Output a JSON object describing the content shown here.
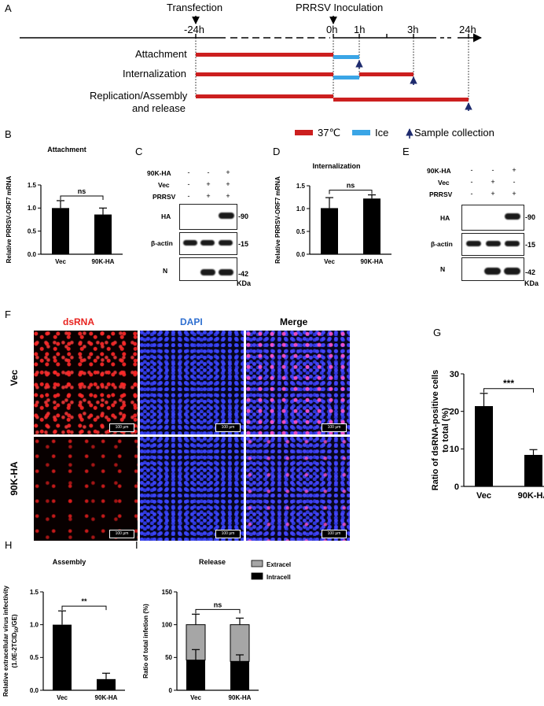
{
  "panels": {
    "A": "A",
    "B": "B",
    "C": "C",
    "D": "D",
    "E": "E",
    "F": "F",
    "G": "G",
    "H": "H",
    "I": "I"
  },
  "timeline": {
    "transfection": "Transfection",
    "inoculation": "PRRSV Inoculation",
    "ticks": [
      "-24h",
      "0h",
      "1h",
      "3h",
      "24h"
    ],
    "rows": [
      "Attachment",
      "Internalization",
      "Replication/Assembly",
      "and release"
    ],
    "legend": {
      "warm": "37℃",
      "ice": "Ice",
      "sample": "Sample collection"
    },
    "colors": {
      "warm": "#cc1f1f",
      "ice": "#3aa5e6",
      "arrow": "#1e2b6e"
    }
  },
  "chart_data": [
    {
      "id": "B",
      "type": "bar",
      "title": "Attachment",
      "ylabel": "Relative PRRSV-ORF7 mRNA",
      "categories": [
        "Vec",
        "90K-HA"
      ],
      "values": [
        1.0,
        0.86
      ],
      "errors": [
        0.16,
        0.14
      ],
      "ylim": [
        0,
        1.5
      ],
      "yticks": [
        "0.0",
        "0.5",
        "1.0",
        "1.5"
      ],
      "significance": "ns"
    },
    {
      "id": "D",
      "type": "bar",
      "title": "Internalization",
      "ylabel": "Relative PRRSV-ORF7 mRNA",
      "categories": [
        "Vec",
        "90K-HA"
      ],
      "values": [
        1.01,
        1.22
      ],
      "errors": [
        0.23,
        0.08
      ],
      "ylim": [
        0,
        1.5
      ],
      "yticks": [
        "0.0",
        "0.5",
        "1.0",
        "1.5"
      ],
      "significance": "ns"
    },
    {
      "id": "G",
      "type": "bar",
      "title": "",
      "ylabel": "Ratio of dsRNA-positive cells to total (%)",
      "categories": [
        "Vec",
        "90K-HA"
      ],
      "values": [
        21.4,
        8.4
      ],
      "errors": [
        3.4,
        1.4
      ],
      "ylim": [
        0,
        30
      ],
      "yticks": [
        "0",
        "10",
        "20",
        "30"
      ],
      "significance": "***"
    },
    {
      "id": "H",
      "type": "bar",
      "title": "Assembly",
      "ylabel": "Relative extracellular virus infectivity (1.0E-2TCID50/GE)",
      "categories": [
        "Vec",
        "90K-HA"
      ],
      "values": [
        1.0,
        0.17
      ],
      "errors": [
        0.21,
        0.09
      ],
      "ylim": [
        0,
        1.5
      ],
      "yticks": [
        "0.0",
        "0.5",
        "1.0",
        "1.5"
      ],
      "significance": "**"
    },
    {
      "id": "I",
      "type": "bar",
      "stacked": true,
      "title": "Release",
      "ylabel": "Ratio of total infetion (%)",
      "categories": [
        "Vec",
        "90K-HA"
      ],
      "series": [
        {
          "name": "Intracellular",
          "values": [
            46,
            44
          ],
          "errors": [
            16,
            10
          ]
        },
        {
          "name": "Extracellular",
          "values": [
            54,
            56
          ],
          "errors": [
            16,
            10
          ]
        }
      ],
      "ylim": [
        0,
        150
      ],
      "yticks": [
        "0",
        "50",
        "100",
        "150"
      ],
      "significance": "ns"
    }
  ],
  "blots": {
    "C": {
      "conditions": [
        {
          "label": "90K-HA",
          "signs": [
            "-",
            "-",
            "+"
          ]
        },
        {
          "label": "Vec",
          "signs": [
            "-",
            "+",
            "+"
          ]
        },
        {
          "label": "PRRSV",
          "signs": [
            "-",
            "+",
            "+"
          ]
        }
      ],
      "rows": [
        {
          "label": "HA",
          "mw": "-90"
        },
        {
          "label": "β-actin",
          "mw": "-15"
        },
        {
          "label": "N",
          "mw": "-42"
        }
      ],
      "unit": "KDa"
    },
    "E": {
      "conditions": [
        {
          "label": "90K-HA",
          "signs": [
            "-",
            "-",
            "+"
          ]
        },
        {
          "label": "Vec",
          "signs": [
            "-",
            "+",
            "-"
          ]
        },
        {
          "label": "PRRSV",
          "signs": [
            "-",
            "+",
            "+"
          ]
        }
      ],
      "rows": [
        {
          "label": "HA",
          "mw": "-90"
        },
        {
          "label": "β-actin",
          "mw": "-15"
        },
        {
          "label": "N",
          "mw": "-42"
        }
      ],
      "unit": "KDa"
    }
  },
  "microscopy": {
    "columns": [
      "dsRNA",
      "DAPI",
      "Merge"
    ],
    "rows": [
      "Vec",
      "90K-HA"
    ],
    "scale_bar": "100 μm",
    "colors": {
      "dsRNA": "#e8231f",
      "DAPI": "#2e6fd0",
      "Merge": "#000000"
    }
  }
}
